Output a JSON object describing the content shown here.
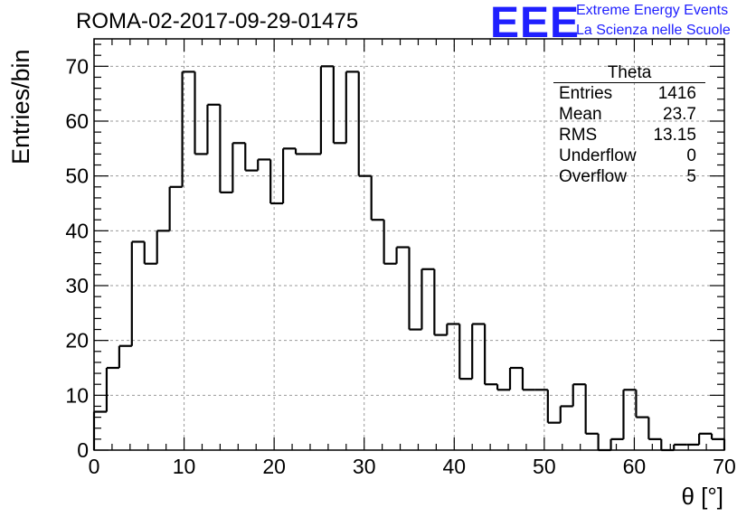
{
  "title": "ROMA-02-2017-09-29-01475",
  "logo": {
    "text": "EEE",
    "line1": "Extreme Energy Events",
    "line2": "La Scienza nelle Scuole",
    "color": "#2020ff"
  },
  "stats": {
    "title": "Theta",
    "rows": [
      {
        "label": "Entries",
        "value": "1416"
      },
      {
        "label": "Mean",
        "value": "23.7"
      },
      {
        "label": "RMS",
        "value": "13.15"
      },
      {
        "label": "Underflow",
        "value": "0"
      },
      {
        "label": "Overflow",
        "value": "5"
      }
    ]
  },
  "chart_data": {
    "type": "histogram",
    "xlabel": "θ [°]",
    "ylabel": "Entries/bin",
    "xlim": [
      0,
      70
    ],
    "ylim": [
      0,
      75
    ],
    "bin_width": 1.4,
    "x_ticks": [
      0,
      10,
      20,
      30,
      40,
      50,
      60,
      70
    ],
    "y_ticks": [
      0,
      10,
      20,
      30,
      40,
      50,
      60,
      70
    ],
    "grid": true,
    "values": [
      7,
      15,
      19,
      38,
      34,
      40,
      48,
      69,
      54,
      63,
      47,
      56,
      51,
      53,
      45,
      55,
      54,
      54,
      70,
      56,
      69,
      50,
      42,
      34,
      37,
      22,
      33,
      21,
      23,
      13,
      23,
      12,
      11,
      15,
      11,
      11,
      5,
      8,
      12,
      3,
      0,
      2,
      11,
      6,
      2,
      0,
      1,
      1,
      3,
      2
    ]
  }
}
